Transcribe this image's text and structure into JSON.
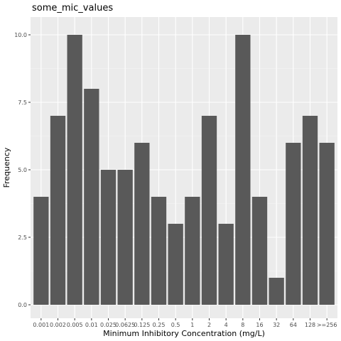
{
  "chart_data": {
    "type": "bar",
    "title": "some_mic_values",
    "xlabel": "Minimum Inhibitory Concentration (mg/L)",
    "ylabel": "Frequency",
    "categories": [
      "0.001",
      "0.002",
      "0.005",
      "0.01",
      "0.025",
      "0.0625",
      "0.125",
      "0.25",
      "0.5",
      "1",
      "2",
      "4",
      "8",
      "16",
      "32",
      "64",
      "128",
      ">=256"
    ],
    "values": [
      4,
      7,
      10,
      8,
      5,
      5,
      6,
      4,
      3,
      4,
      7,
      3,
      10,
      4,
      1,
      6,
      7,
      6
    ],
    "ylim": [
      0,
      10.5
    ],
    "yticks": [
      0.0,
      2.5,
      5.0,
      7.5,
      10.0
    ],
    "ytick_labels": [
      "0.0",
      "2.5",
      "5.0",
      "7.5",
      "10.0"
    ],
    "grid": true,
    "colors": {
      "bar": "#595959",
      "panel_background": "#ebebeb",
      "grid_major": "#ffffff",
      "grid_minor": "#f5f5f5"
    }
  }
}
